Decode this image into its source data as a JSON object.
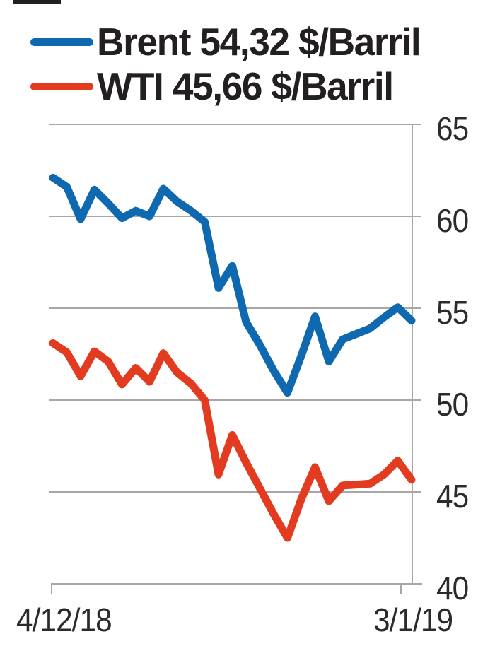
{
  "legend": {
    "items": [
      {
        "label": "Brent 54,32 $/Barril",
        "color": "#0f69b1"
      },
      {
        "label": "WTI 45,66 $/Barril",
        "color": "#e23b20"
      }
    ]
  },
  "axes": {
    "x_ticks": [
      "4/12/18",
      "3/1/19"
    ],
    "y_tick_labels": [
      "65",
      "60",
      "55",
      "50",
      "45",
      "40"
    ]
  },
  "chart_data": {
    "type": "line",
    "title": "",
    "xlabel": "",
    "ylabel": "$/Barril",
    "x_range_labels": [
      "4/12/18",
      "3/1/19"
    ],
    "ylim": [
      40,
      65
    ],
    "y_ticks": [
      65,
      60,
      55,
      50,
      45,
      40
    ],
    "grid": true,
    "legend_position": "top-left",
    "series": [
      {
        "name": "Brent",
        "current_value_label": "54,32 $/Barril",
        "color": "#0f69b1",
        "values": [
          62.1,
          61.6,
          59.85,
          61.45,
          60.7,
          59.9,
          60.3,
          60.0,
          61.5,
          60.8,
          60.3,
          59.7,
          56.1,
          57.3,
          54.25,
          53.0,
          51.6,
          50.4,
          52.4,
          54.55,
          52.1,
          53.3,
          53.6,
          53.9,
          54.5,
          55.05,
          54.32
        ]
      },
      {
        "name": "WTI",
        "current_value_label": "45,66 $/Barril",
        "color": "#e23b20",
        "values": [
          53.1,
          52.6,
          51.3,
          52.65,
          52.1,
          50.85,
          51.75,
          51.0,
          52.55,
          51.5,
          50.9,
          50.0,
          45.95,
          48.1,
          46.6,
          45.2,
          43.8,
          42.5,
          44.6,
          46.35,
          44.5,
          45.35,
          45.4,
          45.45,
          45.95,
          46.7,
          45.66
        ]
      }
    ]
  }
}
